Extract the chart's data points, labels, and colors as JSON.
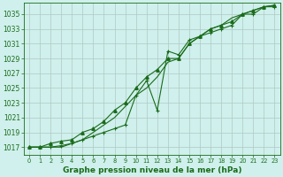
{
  "title": "Graphe pression niveau de la mer (hPa)",
  "bg_color": "#cff0ec",
  "line_color": "#1a6b1a",
  "grid_color": "#b0c8c4",
  "x_ticks": [
    0,
    1,
    2,
    3,
    4,
    5,
    6,
    7,
    8,
    9,
    10,
    11,
    12,
    13,
    14,
    15,
    16,
    17,
    18,
    19,
    20,
    21,
    22,
    23
  ],
  "y_ticks": [
    1017,
    1019,
    1021,
    1023,
    1025,
    1027,
    1029,
    1031,
    1033,
    1035
  ],
  "ylim": [
    1016.0,
    1036.5
  ],
  "xlim": [
    -0.5,
    23.5
  ],
  "series1_x": [
    0,
    1,
    2,
    3,
    4,
    5,
    6,
    7,
    8,
    9,
    10,
    11,
    12,
    13,
    14,
    15,
    16,
    17,
    18,
    19,
    20,
    21,
    22,
    23
  ],
  "series1_y": [
    1017,
    1017,
    1017,
    1017.2,
    1017.5,
    1018,
    1018.5,
    1019,
    1019.5,
    1020,
    1024,
    1026,
    1022,
    1030,
    1029.5,
    1031.5,
    1032,
    1032.5,
    1033,
    1033.5,
    1035,
    1035,
    1036,
    1036
  ],
  "series2_x": [
    0,
    1,
    2,
    3,
    4,
    5,
    6,
    7,
    8,
    9,
    10,
    11,
    12,
    13,
    14,
    15,
    16,
    17,
    18,
    19,
    20,
    21,
    22,
    23
  ],
  "series2_y": [
    1017,
    1017,
    1017.5,
    1017.8,
    1018,
    1019,
    1019.5,
    1020.5,
    1022,
    1023,
    1025,
    1026.5,
    1027.5,
    1029,
    1029,
    1031,
    1032,
    1033,
    1033.5,
    1034,
    1035,
    1035.5,
    1036,
    1036.2
  ],
  "series3_x": [
    0,
    1,
    2,
    3,
    4,
    5,
    6,
    7,
    8,
    9,
    10,
    11,
    12,
    13,
    14,
    15,
    16,
    17,
    18,
    19,
    20,
    21,
    22,
    23
  ],
  "series3_y": [
    1017,
    1017,
    1017,
    1017,
    1017.5,
    1018,
    1019,
    1020,
    1021,
    1022.5,
    1024,
    1025,
    1026.5,
    1028.5,
    1029,
    1031,
    1032,
    1033,
    1033.5,
    1034.5,
    1035,
    1035.5,
    1036,
    1036.2
  ]
}
